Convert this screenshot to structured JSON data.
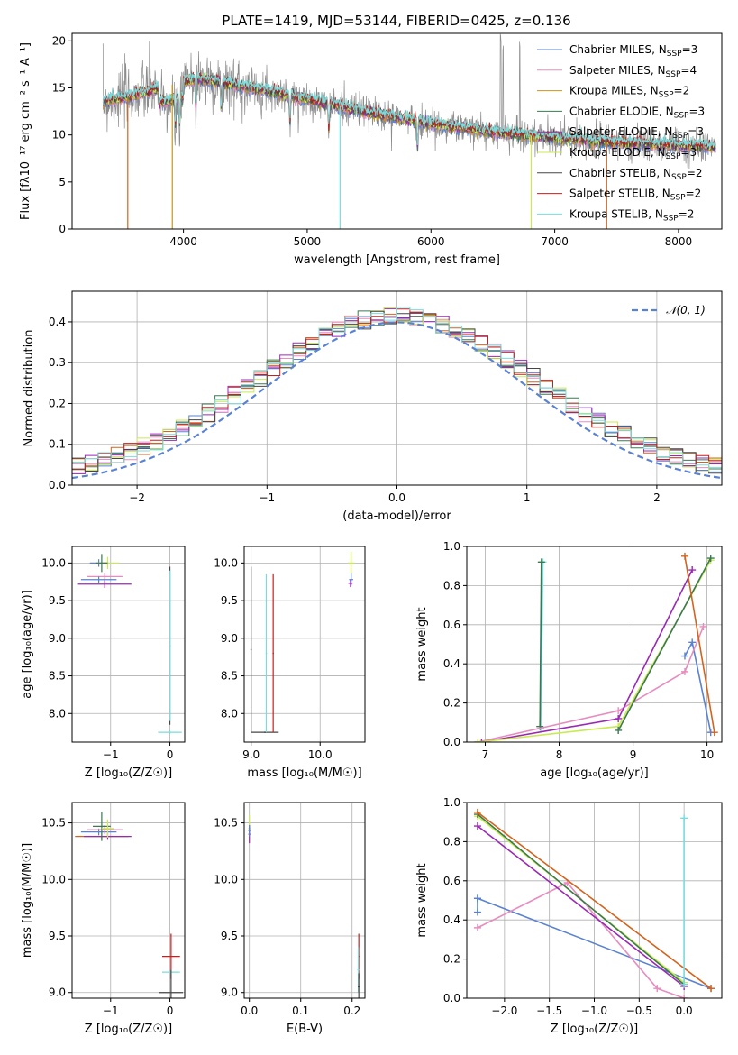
{
  "figure": {
    "title": "PLATE=1419, MJD=53144, FIBERID=0425, z=0.136"
  },
  "chart_data": [
    {
      "id": "spectrum",
      "type": "line",
      "xlabel": "wavelength [Angstrom, rest frame]",
      "ylabel": "Flux [fλ10⁻¹⁷ erg cm⁻² s⁻¹ A⁻¹]",
      "xlim": [
        3100,
        8350
      ],
      "ylim": [
        0,
        20.8
      ],
      "xticks": [
        4000,
        5000,
        6000,
        7000,
        8000
      ],
      "yticks": [
        0,
        5,
        10,
        15,
        20
      ],
      "grid": false,
      "legend_position": "top-right",
      "series": [
        {
          "name": "Chabrier MILES, N_SSP=3",
          "color": "#5a82d2"
        },
        {
          "name": "Salpeter MILES, N_SSP=4",
          "color": "#e68cbe"
        },
        {
          "name": "Kroupa MILES, N_SSP=2",
          "color": "#c8961e"
        },
        {
          "name": "Chabrier ELODIE, N_SSP=3",
          "color": "#3c7850"
        },
        {
          "name": "Salpeter ELODIE, N_SSP=3",
          "color": "#9a28b4"
        },
        {
          "name": "Kroupa ELODIE, N_SSP=3",
          "color": "#c8eb50"
        },
        {
          "name": "Chabrier STELIB, N_SSP=2",
          "color": "#464646"
        },
        {
          "name": "Salpeter STELIB, N_SSP=2",
          "color": "#c81e1e"
        },
        {
          "name": "Kroupa STELIB, N_SSP=2",
          "color": "#78dcdc"
        }
      ],
      "data_series": {
        "name": "data",
        "color": "#8c8c8c"
      },
      "continuum": [
        [
          3350,
          13.5
        ],
        [
          3600,
          14.2
        ],
        [
          3900,
          15.3
        ],
        [
          4100,
          16.0
        ],
        [
          4300,
          15.6
        ],
        [
          4600,
          14.9
        ],
        [
          5000,
          13.8
        ],
        [
          5500,
          12.4
        ],
        [
          6000,
          11.2
        ],
        [
          6500,
          10.3
        ],
        [
          7000,
          9.7
        ],
        [
          7500,
          9.2
        ],
        [
          8000,
          8.9
        ],
        [
          8300,
          8.7
        ]
      ],
      "absorption_lines": [
        3934,
        3969,
        4101,
        4305,
        4861,
        5175,
        5890
      ],
      "emission_lines": [
        6563,
        6583,
        6717
      ],
      "model_dropouts": [
        [
          3550,
          "#d2641e"
        ],
        [
          3910,
          "#c8961e"
        ],
        [
          5265,
          "#78dcdc"
        ],
        [
          6810,
          "#c8eb50"
        ],
        [
          7420,
          "#d2641e"
        ]
      ]
    },
    {
      "id": "residuals",
      "type": "area",
      "xlabel": "(data-model)/error",
      "ylabel": "Normed distribution",
      "xlim": [
        -2.5,
        2.5
      ],
      "ylim": [
        0,
        0.475
      ],
      "xticks": [
        -2,
        -1,
        0,
        1,
        2
      ],
      "yticks": [
        0.0,
        0.1,
        0.2,
        0.3,
        0.4
      ],
      "grid": true,
      "legend_position": "top-right",
      "legend_label": "𝒩(0, 1)",
      "normal_color": "#5a82d2",
      "colors": [
        "#5a82d2",
        "#e68cbe",
        "#d2641e",
        "#3c7850",
        "#9a28b4",
        "#c8eb50",
        "#464646",
        "#c81e1e",
        "#78dcdc"
      ],
      "histogram_bin_width": 0.1
    },
    {
      "id": "age_vs_Z",
      "type": "scatter",
      "xlabel": "Z [log₁₀(Z/Z☉)]",
      "ylabel": "age  [log₁₀(age/yr)]",
      "xlim": [
        -1.65,
        0.25
      ],
      "ylim": [
        7.62,
        10.22
      ],
      "xticks": [
        -1,
        0
      ],
      "yticks": [
        8.0,
        8.5,
        9.0,
        9.5,
        10.0
      ],
      "grid": true,
      "points": [
        {
          "x": -1.2,
          "y": 10.0,
          "xerr": 0.15,
          "yerr": 0.05,
          "color": "#5a82d2"
        },
        {
          "x": -1.05,
          "y": 10.0,
          "xerr": 0.2,
          "yerr": 0.08,
          "color": "#c8eb50"
        },
        {
          "x": -1.1,
          "y": 9.82,
          "xerr": 0.3,
          "yerr": 0.05,
          "color": "#e68cbe"
        },
        {
          "x": -1.2,
          "y": 9.78,
          "xerr": 0.3,
          "yerr": 0.04,
          "color": "#5a82d2"
        },
        {
          "x": -1.1,
          "y": 9.72,
          "xerr": 0.45,
          "yerr": 0.05,
          "color": "#9a28b4"
        },
        {
          "x": -1.15,
          "y": 10.0,
          "xerr": 0.1,
          "yerr": 0.12,
          "color": "#3c7850"
        },
        {
          "x": 0.0,
          "y": 8.9,
          "xerr": 0.01,
          "yerr": 1.05,
          "color": "#464646"
        },
        {
          "x": 0.0,
          "y": 7.75,
          "xerr": 0.2,
          "yerr": 0.02,
          "color": "#78dcdc"
        },
        {
          "x": 0.0,
          "y": 8.9,
          "xerr": 0.01,
          "yerr": 1.0,
          "color": "#78dcdc"
        }
      ]
    },
    {
      "id": "age_vs_mass",
      "type": "scatter",
      "xlabel": "mass [log₁₀(M/M☉)]",
      "ylabel": "",
      "xlim": [
        8.9,
        10.65
      ],
      "ylim": [
        7.62,
        10.22
      ],
      "xticks": [
        9,
        10
      ],
      "yticks": [
        8.0,
        8.5,
        9.0,
        9.5,
        10.0
      ],
      "grid": true,
      "points": [
        {
          "x": 9.0,
          "y": 8.85,
          "xerr": 0.01,
          "yerr": 1.1,
          "color": "#464646"
        },
        {
          "x": 9.2,
          "y": 7.75,
          "xerr": 0.2,
          "yerr": 0.01,
          "color": "#464646"
        },
        {
          "x": 9.22,
          "y": 8.8,
          "xerr": 0.01,
          "yerr": 1.05,
          "color": "#78dcdc"
        },
        {
          "x": 9.32,
          "y": 8.8,
          "xerr": 0.01,
          "yerr": 1.05,
          "color": "#c81e1e"
        },
        {
          "x": 10.45,
          "y": 10.0,
          "xerr": 0.05,
          "yerr": 0.15,
          "color": "#c8eb50"
        },
        {
          "x": 10.45,
          "y": 9.78,
          "xerr": 0.03,
          "yerr": 0.08,
          "color": "#5a82d2"
        },
        {
          "x": 10.44,
          "y": 9.73,
          "xerr": 0.03,
          "yerr": 0.05,
          "color": "#9a28b4"
        }
      ]
    },
    {
      "id": "weight_vs_age",
      "type": "line",
      "xlabel": "age  [log₁₀(age/yr)]",
      "ylabel": "mass weight",
      "xlim": [
        6.75,
        10.2
      ],
      "ylim": [
        0,
        1.0
      ],
      "xticks": [
        7,
        8,
        9,
        10
      ],
      "yticks": [
        0.0,
        0.2,
        0.4,
        0.6,
        0.8,
        1.0
      ],
      "grid": true,
      "series": [
        {
          "color": "#78dcdc",
          "x": [
            7.75,
            7.78
          ],
          "y": [
            0.07,
            0.92
          ]
        },
        {
          "color": "#3c7850",
          "x": [
            7.74,
            7.76
          ],
          "y": [
            0.08,
            0.92
          ]
        },
        {
          "color": "#5a82d2",
          "x": [
            9.7,
            9.8,
            10.05
          ],
          "y": [
            0.44,
            0.51,
            0.05
          ]
        },
        {
          "color": "#e68cbe",
          "x": [
            6.9,
            8.8,
            9.7,
            9.95
          ],
          "y": [
            0.0,
            0.16,
            0.36,
            0.59
          ]
        },
        {
          "color": "#9a28b4",
          "x": [
            6.95,
            8.8,
            9.8
          ],
          "y": [
            0.0,
            0.12,
            0.88
          ]
        },
        {
          "color": "#c8eb50",
          "x": [
            6.9,
            8.8,
            10.05
          ],
          "y": [
            0.0,
            0.08,
            0.93
          ]
        },
        {
          "color": "#3c7850",
          "x": [
            8.8,
            10.05
          ],
          "y": [
            0.06,
            0.94
          ]
        },
        {
          "color": "#d2641e",
          "x": [
            9.7,
            10.1
          ],
          "y": [
            0.95,
            0.05
          ]
        }
      ]
    },
    {
      "id": "mass_vs_Z",
      "type": "scatter",
      "xlabel": "Z [log₁₀(Z/Z☉)]",
      "ylabel": "mass [log₁₀(M/M☉)]",
      "xlim": [
        -1.65,
        0.25
      ],
      "ylim": [
        8.95,
        10.68
      ],
      "xticks": [
        -1,
        0
      ],
      "yticks": [
        9.0,
        9.5,
        10.0,
        10.5
      ],
      "grid": true,
      "points": [
        {
          "x": -1.2,
          "y": 10.42,
          "xerr": 0.3,
          "yerr": 0.03,
          "color": "#5a82d2"
        },
        {
          "x": -1.1,
          "y": 10.44,
          "xerr": 0.3,
          "yerr": 0.04,
          "color": "#e68cbe"
        },
        {
          "x": -1.15,
          "y": 10.38,
          "xerr": 0.45,
          "yerr": 0.03,
          "color": "#d2641e"
        },
        {
          "x": -1.05,
          "y": 10.38,
          "xerr": 0.4,
          "yerr": 0.03,
          "color": "#9a28b4"
        },
        {
          "x": -1.15,
          "y": 10.47,
          "xerr": 0.15,
          "yerr": 0.13,
          "color": "#3c7850"
        },
        {
          "x": -1.05,
          "y": 10.45,
          "xerr": 0.1,
          "yerr": 0.08,
          "color": "#c8eb50"
        },
        {
          "x": 0.02,
          "y": 9.32,
          "xerr": 0.15,
          "yerr": 0.2,
          "color": "#c81e1e"
        },
        {
          "x": 0.02,
          "y": 9.18,
          "xerr": 0.15,
          "yerr": 0.02,
          "color": "#78dcdc"
        },
        {
          "x": 0.02,
          "y": 9.0,
          "xerr": 0.2,
          "yerr": 0.2,
          "color": "#464646"
        }
      ]
    },
    {
      "id": "mass_vs_ebv",
      "type": "scatter",
      "xlabel": "E(B-V)",
      "ylabel": "",
      "xlim": [
        -0.01,
        0.225
      ],
      "ylim": [
        8.95,
        10.68
      ],
      "xticks": [
        0.0,
        0.1,
        0.2
      ],
      "yticks": [
        9.0,
        9.5,
        10.0,
        10.5
      ],
      "grid": true,
      "points": [
        {
          "x": 0.0,
          "y": 10.45,
          "xerr": 0.002,
          "yerr": 0.12,
          "color": "#c8eb50"
        },
        {
          "x": 0.0,
          "y": 10.4,
          "xerr": 0.002,
          "yerr": 0.08,
          "color": "#9a28b4"
        },
        {
          "x": 0.0,
          "y": 10.43,
          "xerr": 0.002,
          "yerr": 0.05,
          "color": "#5a82d2"
        },
        {
          "x": 0.213,
          "y": 9.32,
          "xerr": 0.002,
          "yerr": 0.2,
          "color": "#c81e1e"
        },
        {
          "x": 0.212,
          "y": 9.2,
          "xerr": 0.002,
          "yerr": 0.2,
          "color": "#78dcdc"
        },
        {
          "x": 0.213,
          "y": 9.05,
          "xerr": 0.002,
          "yerr": 0.12,
          "color": "#464646"
        }
      ]
    },
    {
      "id": "weight_vs_Z",
      "type": "line",
      "xlabel": "Z [log₁₀(Z/Z☉)]",
      "ylabel": "mass weight",
      "xlim": [
        -2.42,
        0.42
      ],
      "ylim": [
        0,
        1.0
      ],
      "xticks": [
        -2.0,
        -1.5,
        -1.0,
        -0.5,
        0.0
      ],
      "yticks": [
        0.0,
        0.2,
        0.4,
        0.6,
        0.8,
        1.0
      ],
      "grid": true,
      "series": [
        {
          "color": "#5a82d2",
          "x": [
            -2.3,
            0.3
          ],
          "y": [
            0.51,
            0.05
          ]
        },
        {
          "color": "#e68cbe",
          "x": [
            -2.3,
            -1.3,
            -0.3,
            0.0
          ],
          "y": [
            0.36,
            0.59,
            0.05,
            0.0
          ]
        },
        {
          "color": "#9a28b4",
          "x": [
            -2.3,
            0.0
          ],
          "y": [
            0.88,
            0.06
          ]
        },
        {
          "color": "#c8eb50",
          "x": [
            -2.3,
            0.0
          ],
          "y": [
            0.93,
            0.08
          ]
        },
        {
          "color": "#3c7850",
          "x": [
            -2.3,
            0.0
          ],
          "y": [
            0.94,
            0.07
          ]
        },
        {
          "color": "#d2641e",
          "x": [
            -2.3,
            0.3
          ],
          "y": [
            0.95,
            0.05
          ]
        },
        {
          "color": "#78dcdc",
          "x": [
            0.0,
            0.0
          ],
          "y": [
            0.07,
            0.92
          ]
        },
        {
          "color": "#5a82d2",
          "x": [
            -2.3,
            -2.3
          ],
          "y": [
            0.44,
            0.51
          ]
        }
      ]
    }
  ]
}
